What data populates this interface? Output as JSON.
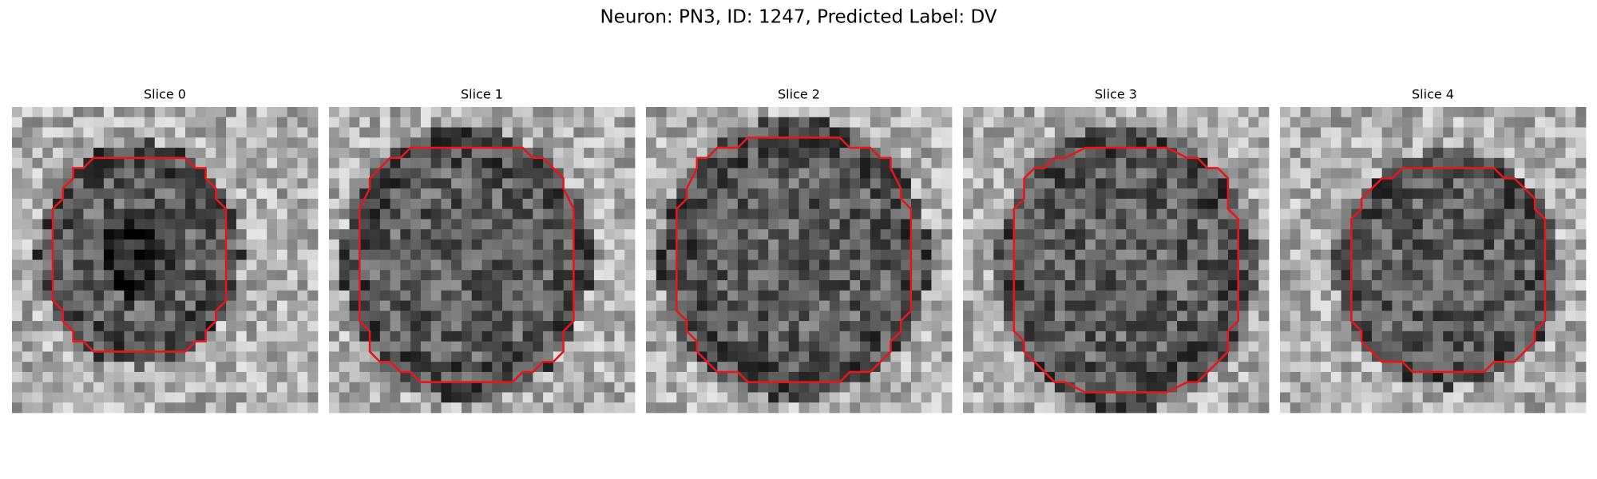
{
  "header": {
    "title": "Neuron: PN3, ID: 1247, Predicted Label: DV"
  },
  "panels": [
    {
      "title": "Slice 0"
    },
    {
      "title": "Slice 1"
    },
    {
      "title": "Slice 2"
    },
    {
      "title": "Slice 3"
    },
    {
      "title": "Slice 4"
    }
  ]
}
